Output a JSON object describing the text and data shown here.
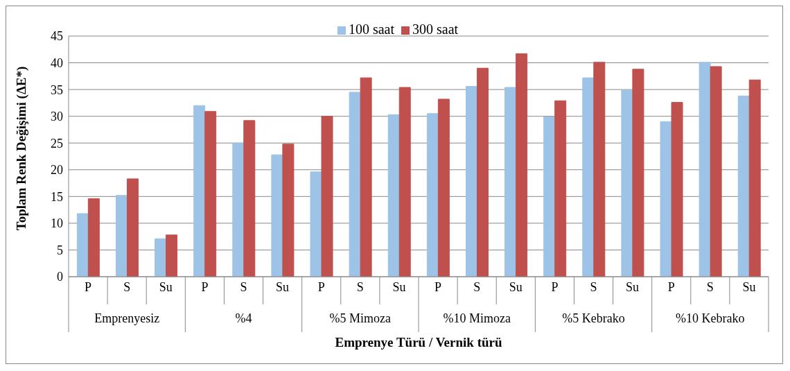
{
  "chart_data": {
    "type": "bar",
    "xlabel": "Emprenye Türü / Vernik türü",
    "ylabel": "Toplam Renk Değişimi (ΔE*)",
    "categories": [
      "P",
      "S",
      "Su",
      "P",
      "S",
      "Su",
      "P",
      "S",
      "Su",
      "P",
      "S",
      "Su",
      "P",
      "S",
      "Su",
      "P",
      "S",
      "Su"
    ],
    "annotations": [
      "Emprenyesiz",
      "%4",
      "%5 Mimoza",
      "%10 Mimoza",
      "%5 Kebrako",
      "%10 Kebrako"
    ],
    "series": [
      {
        "name": "100 saat",
        "color": "#9dc3e6",
        "values": [
          11.8,
          15.2,
          7.1,
          32.0,
          25.0,
          22.8,
          19.6,
          34.5,
          30.3,
          30.5,
          35.6,
          35.4,
          29.9,
          37.2,
          34.9,
          29.0,
          40.1,
          33.8
        ]
      },
      {
        "name": "300 saat",
        "color": "#c0504d",
        "values": [
          14.6,
          18.3,
          7.8,
          30.9,
          29.2,
          24.8,
          30.0,
          37.2,
          35.4,
          33.2,
          39.0,
          41.7,
          32.9,
          40.1,
          38.8,
          32.6,
          39.3,
          36.8
        ]
      }
    ],
    "ylim": [
      0,
      45
    ],
    "yticks": [
      0,
      5,
      10,
      15,
      20,
      25,
      30,
      35,
      40,
      45
    ],
    "grid": "y",
    "legend": "top"
  }
}
